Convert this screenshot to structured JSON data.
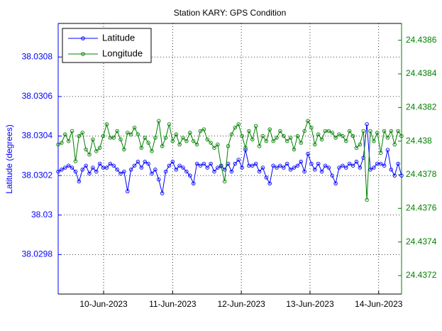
{
  "chart_data": {
    "type": "line",
    "title": "Station KARY: GPS Condition",
    "ylabel": "Latitude (degrees)",
    "ylim": [
      38.0296,
      38.03097
    ],
    "yticks": [
      38.0298,
      38.03,
      38.0302,
      38.0304,
      38.0306,
      38.0308
    ],
    "y2lim": [
      24.43709,
      24.4387
    ],
    "y2ticks": [
      24.4372,
      24.4374,
      24.4376,
      24.4378,
      24.438,
      24.4382,
      24.4384,
      24.4386
    ],
    "xlim": [
      0,
      99
    ],
    "xticks": [
      {
        "value": 13.1,
        "label": "10-Jun-2023"
      },
      {
        "value": 33.0,
        "label": "11-Jun-2023"
      },
      {
        "value": 52.8,
        "label": "12-Jun-2023"
      },
      {
        "value": 72.6,
        "label": "13-Jun-2023"
      },
      {
        "value": 92.4,
        "label": "14-Jun-2023"
      }
    ],
    "grid": true,
    "legend": "upper left",
    "series": [
      {
        "name": "Latitude",
        "color": "#0000ff",
        "values": [
          38.03022,
          38.03023,
          38.03024,
          38.03025,
          38.03024,
          38.03022,
          38.03017,
          38.03023,
          38.03025,
          38.03021,
          38.03024,
          38.03022,
          38.03026,
          38.03024,
          38.03024,
          38.03026,
          38.03025,
          38.03023,
          38.03021,
          38.03022,
          38.03012,
          38.03023,
          38.03025,
          38.03027,
          38.03024,
          38.03027,
          38.03026,
          38.03021,
          38.03023,
          38.03018,
          38.03011,
          38.03022,
          38.03025,
          38.03027,
          38.03023,
          38.03025,
          38.03024,
          38.03022,
          38.0302,
          38.03016,
          38.03026,
          38.03025,
          38.03026,
          38.03024,
          38.03026,
          38.03022,
          38.03024,
          38.03025,
          38.03023,
          38.03026,
          38.03022,
          38.03026,
          38.03028,
          38.03024,
          38.03033,
          38.03025,
          38.03025,
          38.03026,
          38.03022,
          38.03024,
          38.03019,
          38.03016,
          38.03025,
          38.03024,
          38.03025,
          38.03024,
          38.03026,
          38.03023,
          38.03024,
          38.03025,
          38.03027,
          38.03022,
          38.03031,
          38.03026,
          38.03023,
          38.03026,
          38.03022,
          38.03025,
          38.03024,
          38.0302,
          38.03016,
          38.03024,
          38.03025,
          38.03024,
          38.03026,
          38.03025,
          38.03027,
          38.03024,
          38.03029,
          38.03046,
          38.03023,
          38.03024,
          38.03026,
          38.03026,
          38.03025,
          38.03033,
          38.03023,
          38.0302,
          38.03026,
          38.0302
        ]
      },
      {
        "name": "Longitude",
        "color": "#008000",
        "axis": "y2",
        "values": [
          24.43798,
          24.43799,
          24.43804,
          24.438,
          24.43806,
          24.43788,
          24.43803,
          24.43805,
          24.43795,
          24.43792,
          24.43801,
          24.43794,
          24.43796,
          24.43803,
          24.4381,
          24.43802,
          24.43802,
          24.43806,
          24.43801,
          24.43795,
          24.43805,
          24.43804,
          24.43808,
          24.43804,
          24.43796,
          24.43802,
          24.43799,
          24.43794,
          24.43802,
          24.43812,
          24.43797,
          24.43802,
          24.4381,
          24.438,
          24.43804,
          24.43798,
          24.43802,
          24.438,
          24.43805,
          24.438,
          24.43798,
          24.43806,
          24.43807,
          24.43801,
          24.43799,
          24.43796,
          24.43798,
          24.43785,
          24.43776,
          24.43797,
          24.43804,
          24.43808,
          24.4381,
          24.43803,
          24.43796,
          24.43806,
          24.43801,
          24.43809,
          24.43797,
          24.43803,
          24.438,
          24.43807,
          24.438,
          24.43802,
          24.43806,
          24.43803,
          24.438,
          24.43802,
          24.43795,
          24.43803,
          24.43799,
          24.43806,
          24.43812,
          24.43808,
          24.43798,
          24.43804,
          24.43801,
          24.43806,
          24.43806,
          24.43805,
          24.43802,
          24.43804,
          24.43803,
          24.438,
          24.43806,
          24.43803,
          24.43796,
          24.43798,
          24.43806,
          24.43765,
          24.43806,
          24.438,
          24.43805,
          24.43793,
          24.43806,
          24.43802,
          24.43806,
          24.43798,
          24.43806,
          24.43803
        ]
      }
    ]
  }
}
